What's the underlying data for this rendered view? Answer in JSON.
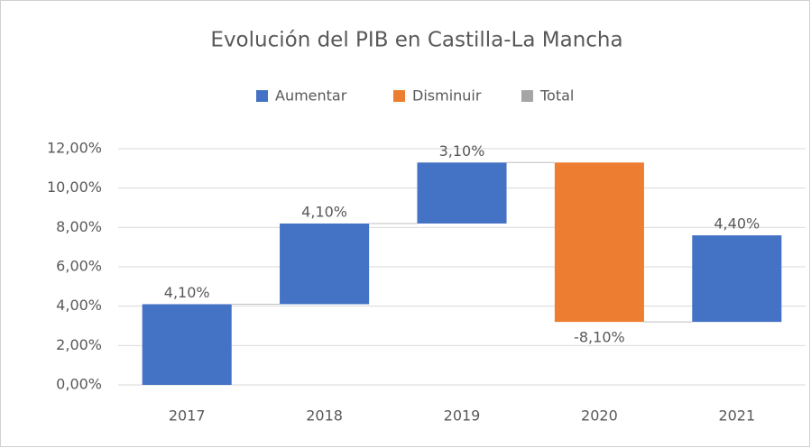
{
  "chart_data": {
    "type": "waterfall",
    "title": "Evolución del PIB en Castilla-La Mancha",
    "legend": [
      {
        "name": "Aumentar",
        "color": "#4472c4"
      },
      {
        "name": "Disminuir",
        "color": "#ed7d31"
      },
      {
        "name": "Total",
        "color": "#a5a5a5"
      }
    ],
    "categories": [
      "2017",
      "2018",
      "2019",
      "2020",
      "2021"
    ],
    "values": [
      4.1,
      4.1,
      3.1,
      -8.1,
      4.4
    ],
    "value_labels": [
      "4,10%",
      "4,10%",
      "3,10%",
      "-8,10%",
      "4,40%"
    ],
    "ylim": [
      0,
      12
    ],
    "yticks": [
      {
        "value": 0,
        "label": "0,00%"
      },
      {
        "value": 2,
        "label": "2,00%"
      },
      {
        "value": 4,
        "label": "4,00%"
      },
      {
        "value": 6,
        "label": "6,00%"
      },
      {
        "value": 8,
        "label": "8,00%"
      },
      {
        "value": 10,
        "label": "10,00%"
      },
      {
        "value": 12,
        "label": "12,00%"
      }
    ],
    "grid": true
  }
}
